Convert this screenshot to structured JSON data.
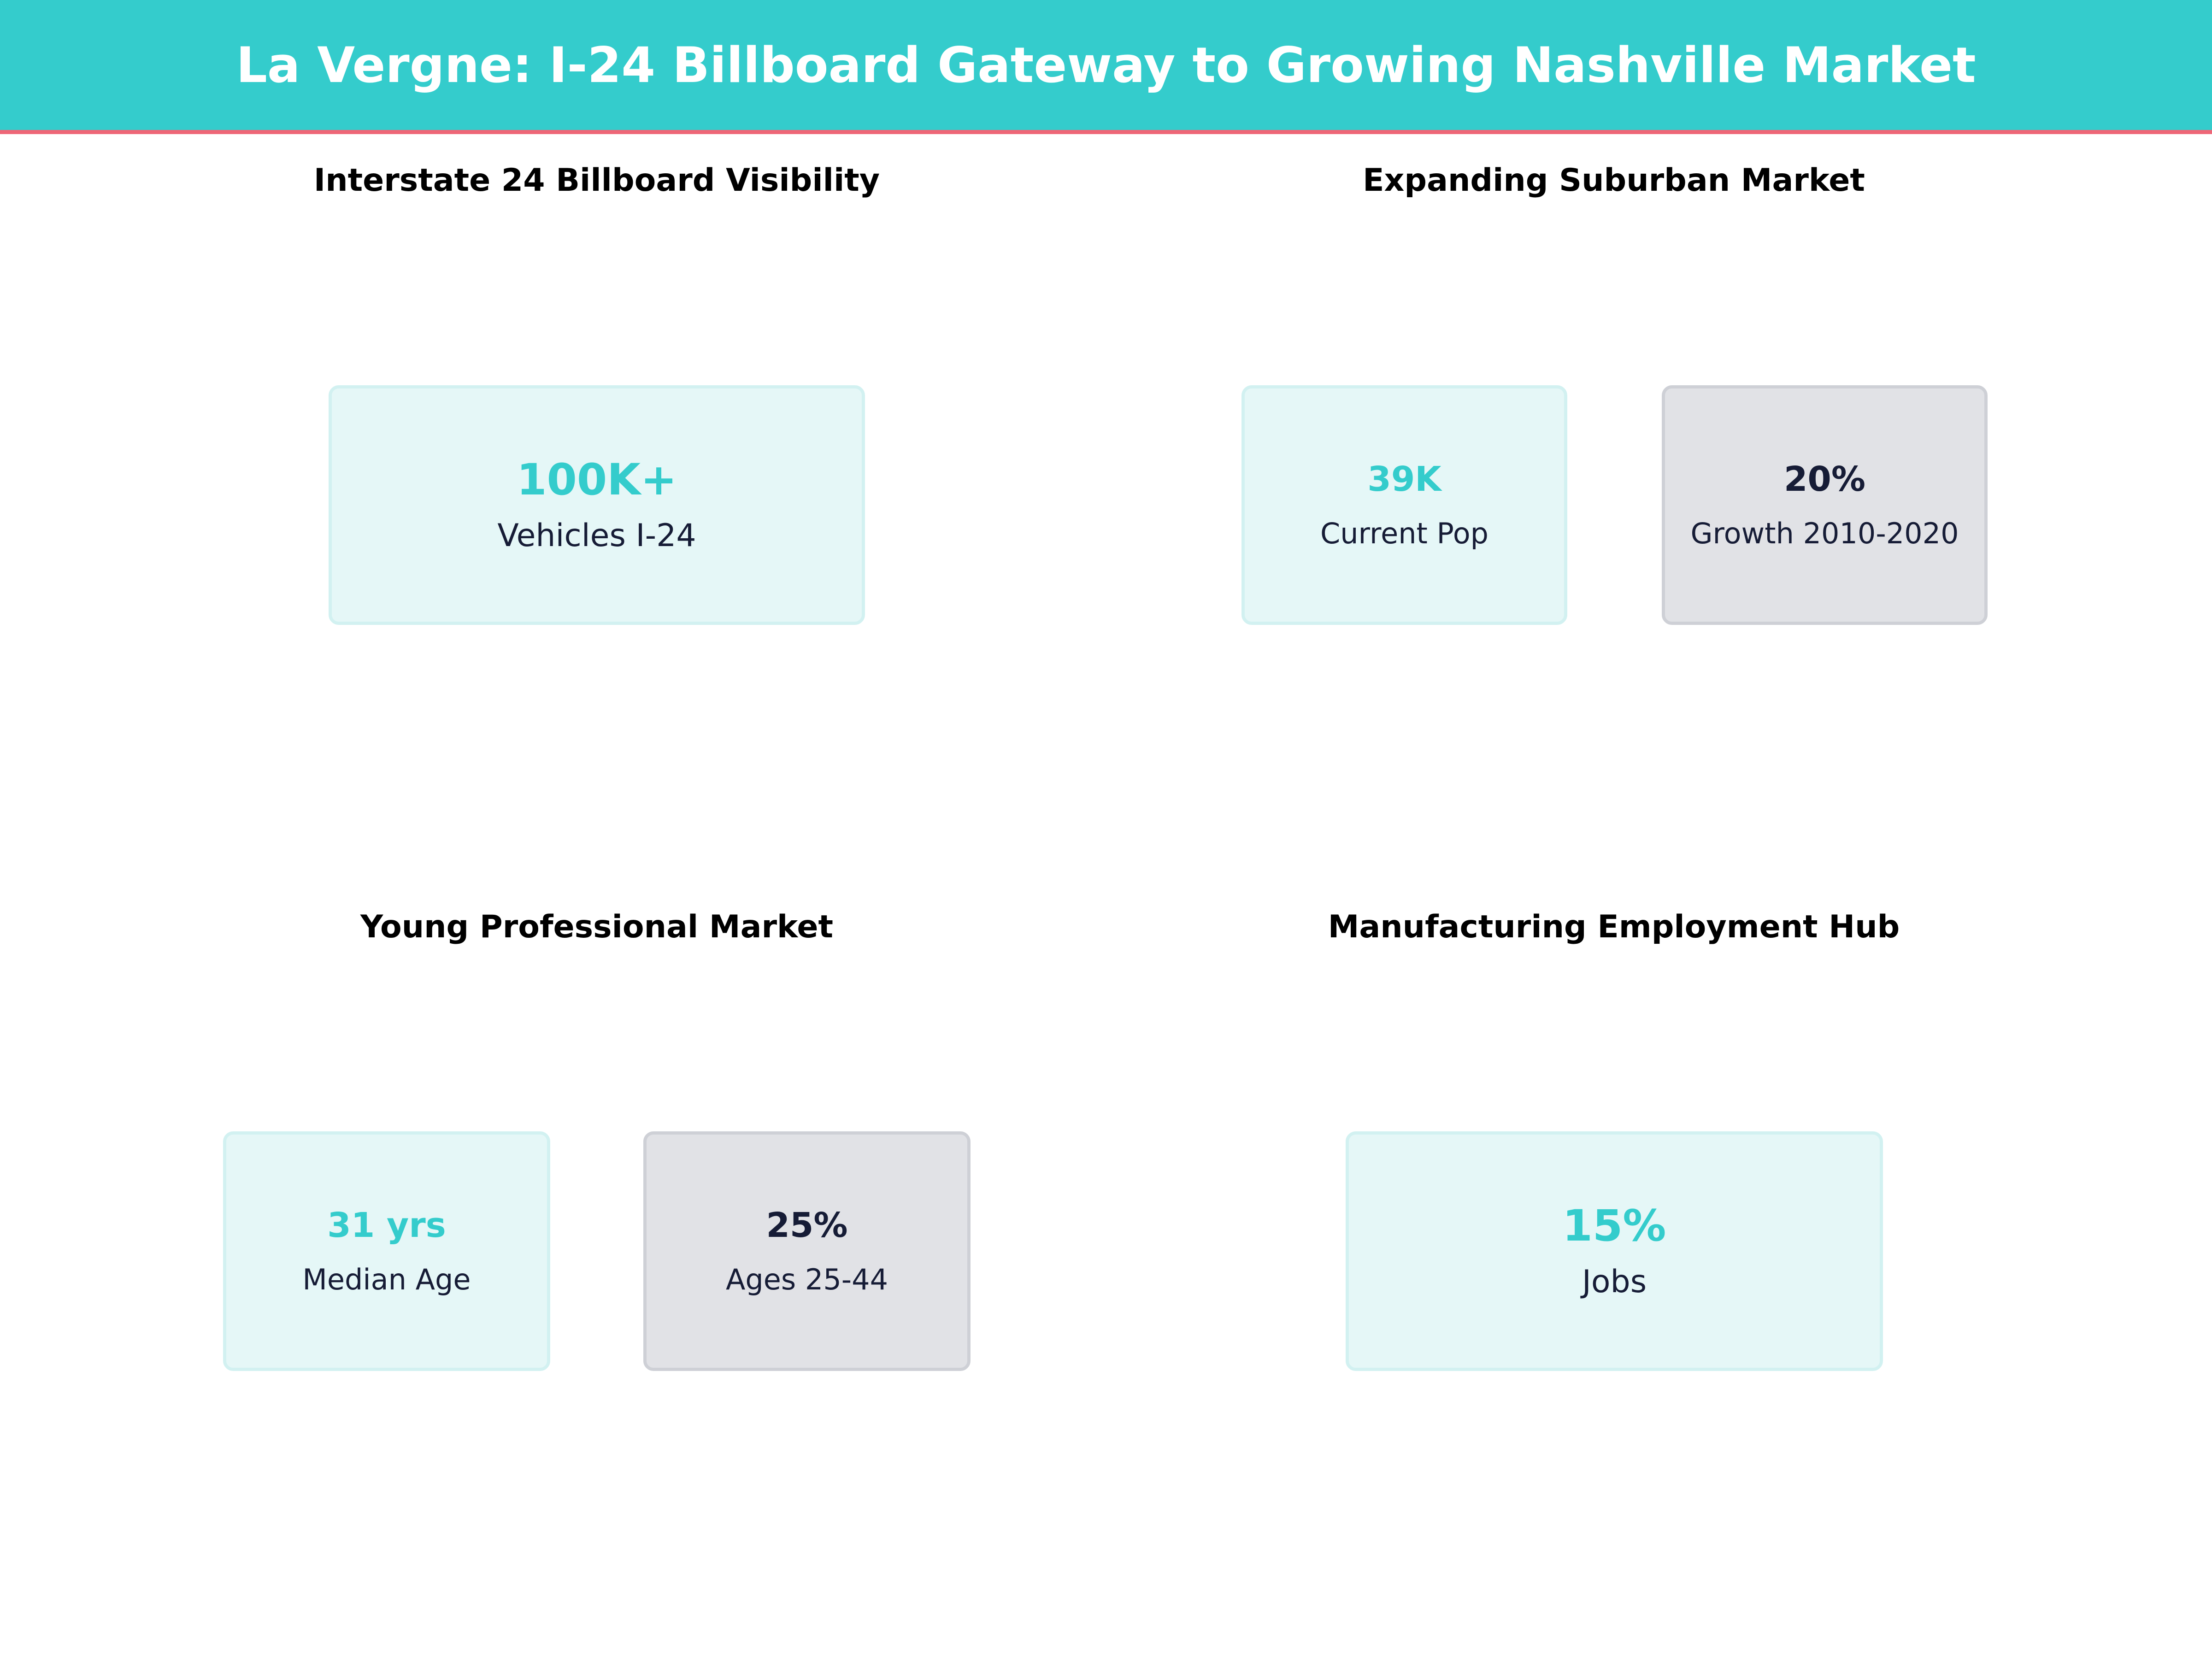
{
  "title": "La Vergne: I-24 Billboard Gateway to Growing Nashville Market",
  "colors": {
    "accent": "#34CCCC",
    "header_rule": "#EE6677",
    "dark": "#161C36",
    "teal_card": "#E5F7F7",
    "grey_card": "#E1E2E6"
  },
  "panels": [
    {
      "title": "Interstate 24 Billboard Visibility",
      "cards": [
        {
          "value": "100K+",
          "label": "Vehicles I-24"
        }
      ]
    },
    {
      "title": "Expanding Suburban Market",
      "cards": [
        {
          "value": "39K",
          "label": "Current Pop"
        },
        {
          "value": "20%",
          "label": "Growth 2010-2020"
        }
      ]
    },
    {
      "title": "Young Professional Market",
      "cards": [
        {
          "value": "31 yrs",
          "label": "Median Age"
        },
        {
          "value": "25%",
          "label": "Ages 25-44"
        }
      ]
    },
    {
      "title": "Manufacturing Employment Hub",
      "cards": [
        {
          "value": "15%",
          "label": "Jobs"
        }
      ]
    }
  ]
}
